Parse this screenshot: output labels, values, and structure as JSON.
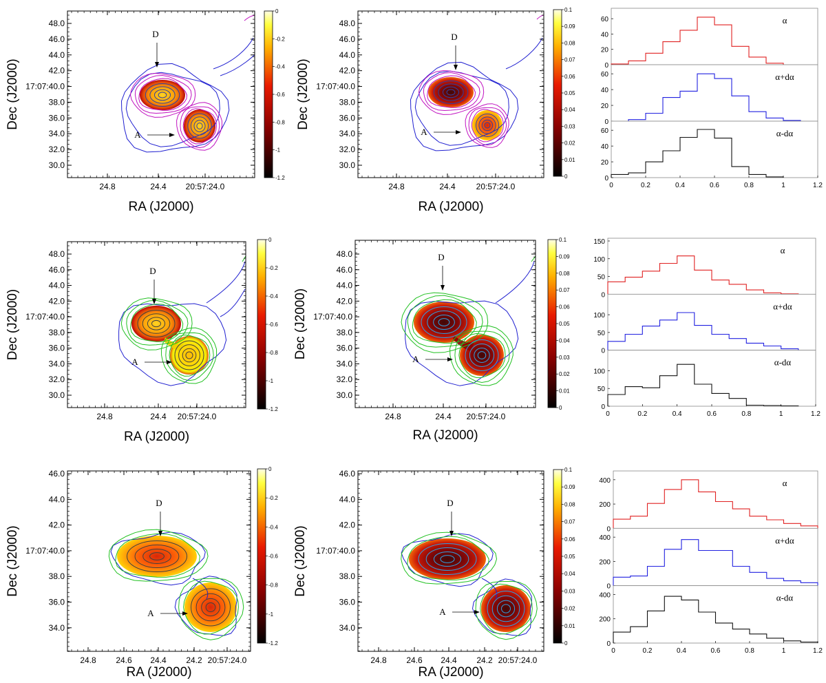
{
  "figure": {
    "description_free": true
  },
  "chart_data": [
    {
      "type": "heatmap",
      "panel": "row1-spectral-index",
      "xlabel": "RA (J2000)",
      "ylabel": "Dec (J2000)",
      "x_ticks": [
        "24.8",
        "24.4",
        "20:57:24.0"
      ],
      "y_ticks": [
        "48.0",
        "46.0",
        "44.0",
        "42.0",
        "17:07:40.0",
        "38.0",
        "36.0",
        "34.0",
        "32.0",
        "30.0"
      ],
      "colorbar_ticks": [
        "0",
        "-0.2",
        "-0.4",
        "-0.6",
        "-0.8",
        "-1",
        "-1.2"
      ],
      "colorbar_range": [
        -1.2,
        0
      ],
      "colormap": "hot",
      "contour_colors": [
        "#1f1fd0",
        "#c010c0"
      ],
      "annotations": [
        "D",
        "A"
      ]
    },
    {
      "type": "heatmap",
      "panel": "row1-error",
      "xlabel": "RA (J2000)",
      "ylabel": "Dec (J2000)",
      "x_ticks": [
        "24.8",
        "24.4",
        "20:57:24.0"
      ],
      "y_ticks": [
        "48.0",
        "46.0",
        "44.0",
        "42.0",
        "17:07:40.0",
        "38.0",
        "36.0",
        "34.0",
        "32.0",
        "30.0"
      ],
      "colorbar_ticks": [
        "0.1",
        "0.09",
        "0.08",
        "0.07",
        "0.06",
        "0.05",
        "0.04",
        "0.03",
        "0.02",
        "0.01",
        "0"
      ],
      "colorbar_range": [
        0,
        0.1
      ],
      "colormap": "hot",
      "contour_colors": [
        "#1f1fd0",
        "#c010c0"
      ],
      "annotations": [
        "D",
        "A"
      ]
    },
    {
      "type": "histogram",
      "panel": "row1-hist",
      "x_ticks": [
        "0",
        "0.2",
        "0.4",
        "0.6",
        "0.8",
        "1",
        "1.2"
      ],
      "subplots": [
        {
          "label": "α",
          "color": "#e02020",
          "y_ticks": [
            "0",
            "20",
            "40",
            "60"
          ],
          "ylim": [
            0,
            70
          ],
          "bins": [
            0,
            0.1,
            0.2,
            0.3,
            0.4,
            0.5,
            0.6,
            0.7,
            0.8,
            0.9,
            1.0
          ],
          "values": [
            1,
            5,
            15,
            30,
            45,
            62,
            52,
            24,
            10,
            2
          ]
        },
        {
          "label": "α+dα",
          "color": "#2020e0",
          "y_ticks": [
            "0",
            "20",
            "40",
            "60"
          ],
          "ylim": [
            0,
            68
          ],
          "bins": [
            0.1,
            0.2,
            0.3,
            0.4,
            0.5,
            0.6,
            0.7,
            0.8,
            0.9,
            1.0,
            1.1
          ],
          "values": [
            2,
            10,
            30,
            38,
            60,
            54,
            32,
            12,
            4,
            1
          ]
        },
        {
          "label": "α-dα",
          "color": "#101010",
          "y_ticks": [
            "0",
            "20",
            "40",
            "60"
          ],
          "ylim": [
            0,
            68
          ],
          "bins": [
            0,
            0.1,
            0.2,
            0.3,
            0.4,
            0.5,
            0.6,
            0.7,
            0.8,
            0.9,
            1.0
          ],
          "values": [
            4,
            6,
            20,
            34,
            51,
            61,
            50,
            14,
            4,
            1
          ]
        }
      ]
    },
    {
      "type": "heatmap",
      "panel": "row2-spectral-index",
      "xlabel": "RA (J2000)",
      "ylabel": "Dec (J2000)",
      "x_ticks": [
        "24.8",
        "24.4",
        "20:57:24.0"
      ],
      "y_ticks": [
        "48.0",
        "46.0",
        "44.0",
        "42.0",
        "17:07:40.0",
        "38.0",
        "36.0",
        "34.0",
        "32.0",
        "30.0"
      ],
      "colorbar_ticks": [
        "0",
        "-0.2",
        "-0.4",
        "-0.6",
        "-0.8",
        "-1",
        "-1.2"
      ],
      "colorbar_range": [
        -1.2,
        0
      ],
      "colormap": "hot",
      "contour_colors": [
        "#1f1fd0",
        "#20c020"
      ],
      "annotations": [
        "D",
        "A"
      ]
    },
    {
      "type": "heatmap",
      "panel": "row2-error",
      "xlabel": "RA (J2000)",
      "ylabel": "Dec (J2000)",
      "x_ticks": [
        "24.8",
        "24.4",
        "20:57:24.0"
      ],
      "y_ticks": [
        "48.0",
        "46.0",
        "44.0",
        "42.0",
        "17:07:40.0",
        "38.0",
        "36.0",
        "34.0",
        "32.0",
        "30.0"
      ],
      "colorbar_ticks": [
        "0.1",
        "0.09",
        "0.08",
        "0.07",
        "0.06",
        "0.05",
        "0.04",
        "0.03",
        "0.02",
        "0.01",
        "0"
      ],
      "colorbar_range": [
        0,
        0.1
      ],
      "colormap": "hot",
      "contour_colors": [
        "#1f1fd0",
        "#20c020"
      ],
      "annotations": [
        "D",
        "A"
      ]
    },
    {
      "type": "histogram",
      "panel": "row2-hist",
      "x_ticks": [
        "0",
        "0.2",
        "0.4",
        "0.6",
        "0.8",
        "1",
        "1.2"
      ],
      "subplots": [
        {
          "label": "α",
          "color": "#e02020",
          "y_ticks": [
            "0",
            "50",
            "100",
            "150"
          ],
          "ylim": [
            0,
            150
          ],
          "bins": [
            0,
            0.1,
            0.2,
            0.3,
            0.4,
            0.5,
            0.6,
            0.7,
            0.8,
            0.9,
            1.0,
            1.1
          ],
          "values": [
            35,
            48,
            65,
            87,
            108,
            68,
            40,
            28,
            12,
            4,
            1
          ]
        },
        {
          "label": "α+dα",
          "color": "#2020e0",
          "y_ticks": [
            "0",
            "50",
            "100"
          ],
          "ylim": [
            0,
            150
          ],
          "bins": [
            0,
            0.1,
            0.2,
            0.3,
            0.4,
            0.5,
            0.6,
            0.7,
            0.8,
            0.9,
            1.0,
            1.1
          ],
          "values": [
            25,
            45,
            68,
            85,
            106,
            70,
            45,
            33,
            20,
            12,
            4
          ]
        },
        {
          "label": "α-dα",
          "color": "#101010",
          "y_ticks": [
            "0",
            "50",
            "100"
          ],
          "ylim": [
            0,
            150
          ],
          "bins": [
            0,
            0.1,
            0.2,
            0.3,
            0.4,
            0.5,
            0.6,
            0.7,
            0.8,
            0.9,
            1.0,
            1.1
          ],
          "values": [
            33,
            55,
            52,
            86,
            118,
            62,
            36,
            22,
            3,
            2,
            1
          ]
        }
      ]
    },
    {
      "type": "heatmap",
      "panel": "row3-spectral-index",
      "xlabel": "RA (J2000)",
      "ylabel": "Dec (J2000)",
      "x_ticks": [
        "24.8",
        "24.6",
        "24.4",
        "24.2",
        "20:57:24.0"
      ],
      "y_ticks": [
        "46.0",
        "44.0",
        "42.0",
        "17:07:40.0",
        "38.0",
        "36.0",
        "34.0"
      ],
      "colorbar_ticks": [
        "0",
        "-0.2",
        "-0.4",
        "-0.6",
        "-0.8",
        "-1",
        "-1.2"
      ],
      "colorbar_range": [
        -1.2,
        0
      ],
      "colormap": "hot",
      "contour_colors": [
        "#1f1fd0",
        "#20c020"
      ],
      "annotations": [
        "D",
        "A"
      ]
    },
    {
      "type": "heatmap",
      "panel": "row3-error",
      "xlabel": "RA (J2000)",
      "ylabel": "Dec (J2000)",
      "x_ticks": [
        "24.8",
        "24.6",
        "24.4",
        "24.2",
        "20:57:24.0"
      ],
      "y_ticks": [
        "46.0",
        "44.0",
        "42.0",
        "17:07:40.0",
        "38.0",
        "36.0",
        "34.0"
      ],
      "colorbar_ticks": [
        "0.1",
        "0.09",
        "0.08",
        "0.07",
        "0.06",
        "0.05",
        "0.04",
        "0.03",
        "0.02",
        "0.01",
        "0"
      ],
      "colorbar_range": [
        0,
        0.1
      ],
      "colormap": "hot",
      "contour_colors": [
        "#1f1fd0",
        "#20c020"
      ],
      "annotations": [
        "D",
        "A"
      ]
    },
    {
      "type": "histogram",
      "panel": "row3-hist",
      "x_ticks": [
        "0",
        "0.2",
        "0.4",
        "0.6",
        "0.8",
        "1",
        "1.2"
      ],
      "subplots": [
        {
          "label": "α",
          "color": "#e02020",
          "y_ticks": [
            "0",
            "200",
            "400"
          ],
          "ylim": [
            0,
            450
          ],
          "bins": [
            0,
            0.1,
            0.2,
            0.3,
            0.4,
            0.5,
            0.6,
            0.7,
            0.8,
            0.9,
            1.0,
            1.1,
            1.2
          ],
          "values": [
            75,
            100,
            205,
            320,
            400,
            300,
            220,
            160,
            100,
            70,
            40,
            20
          ]
        },
        {
          "label": "α+dα",
          "color": "#2020e0",
          "y_ticks": [
            "0",
            "200",
            "400"
          ],
          "ylim": [
            0,
            450
          ],
          "bins": [
            0,
            0.1,
            0.2,
            0.3,
            0.4,
            0.5,
            0.6,
            0.7,
            0.8,
            0.9,
            1.0,
            1.1,
            1.2
          ],
          "values": [
            70,
            80,
            160,
            300,
            380,
            290,
            290,
            160,
            110,
            60,
            40,
            25
          ]
        },
        {
          "label": "α-dα",
          "color": "#101010",
          "y_ticks": [
            "0",
            "200",
            "400"
          ],
          "ylim": [
            0,
            450
          ],
          "bins": [
            0,
            0.1,
            0.2,
            0.3,
            0.4,
            0.5,
            0.6,
            0.7,
            0.8,
            0.9,
            1.0,
            1.1,
            1.2
          ],
          "values": [
            90,
            135,
            265,
            385,
            355,
            255,
            165,
            115,
            75,
            40,
            18,
            8
          ]
        }
      ]
    }
  ]
}
